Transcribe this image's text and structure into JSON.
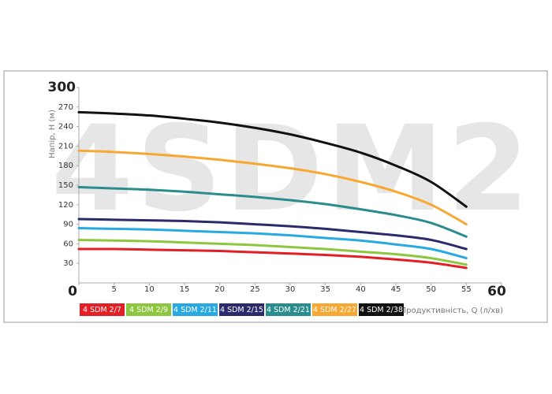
{
  "chart_data": {
    "type": "line",
    "watermark": "4SDM2",
    "x_label": "Продуктивність, Q (л/хв)",
    "y_label": "Напір, Н (м)",
    "x": [
      0,
      5,
      10,
      15,
      20,
      25,
      30,
      35,
      40,
      45,
      50,
      55
    ],
    "xlim": [
      0,
      60
    ],
    "xticks": [
      0,
      5,
      10,
      15,
      20,
      25,
      30,
      35,
      40,
      45,
      50,
      55,
      60
    ],
    "ylim": [
      0,
      300
    ],
    "yticks": [
      30,
      60,
      90,
      120,
      150,
      180,
      210,
      240,
      270,
      300
    ],
    "grid": false,
    "series": [
      {
        "name": "4 SDM 2/7",
        "color": "#e31e24",
        "values": [
          52,
          52,
          51,
          50,
          49,
          47,
          45,
          43,
          40,
          36,
          31,
          23
        ]
      },
      {
        "name": "4 SDM 2/9",
        "color": "#8dc63f",
        "values": [
          66,
          65,
          64,
          62,
          60,
          58,
          55,
          52,
          48,
          44,
          38,
          28
        ]
      },
      {
        "name": "4 SDM 2/11",
        "color": "#29a9e1",
        "values": [
          84,
          83,
          82,
          80,
          78,
          76,
          73,
          69,
          65,
          59,
          52,
          38
        ]
      },
      {
        "name": "4 SDM 2/15",
        "color": "#2b2a6b",
        "values": [
          98,
          97,
          96,
          95,
          93,
          90,
          87,
          83,
          78,
          73,
          66,
          52
        ]
      },
      {
        "name": "4 SDM 2/21",
        "color": "#2a8c8c",
        "values": [
          147,
          145,
          143,
          140,
          136,
          132,
          127,
          121,
          113,
          104,
          92,
          71
        ]
      },
      {
        "name": "4 SDM 2/27",
        "color": "#f7a833",
        "values": [
          203,
          201,
          198,
          194,
          189,
          183,
          176,
          167,
          155,
          140,
          120,
          90
        ]
      },
      {
        "name": "4 SDM 2/38",
        "color": "#111111",
        "values": [
          262,
          260,
          257,
          252,
          246,
          238,
          228,
          215,
          200,
          180,
          155,
          117
        ]
      }
    ]
  }
}
